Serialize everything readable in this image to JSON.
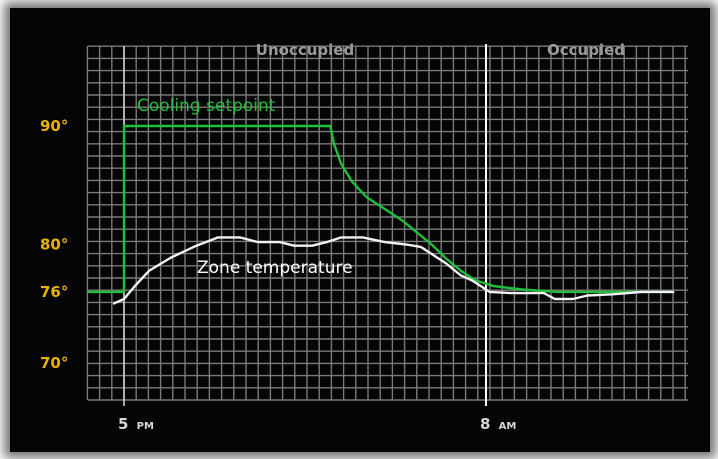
{
  "chart_data": {
    "type": "line",
    "title": "",
    "xlabel": "",
    "ylabel": "",
    "ylim": [
      66,
      98
    ],
    "xlim": [
      -0.2,
      15.2
    ],
    "grid": true,
    "y_ticks": [
      {
        "value": 90,
        "label": "90°"
      },
      {
        "value": 80,
        "label": "80°"
      },
      {
        "value": 76,
        "label": "76°"
      },
      {
        "value": 70,
        "label": "70°"
      }
    ],
    "x_ticks": [
      {
        "value": 0,
        "label": "5",
        "suffix": "PM"
      },
      {
        "value": 10,
        "label": "8",
        "suffix": "AM"
      }
    ],
    "regions": [
      {
        "name": "Unoccupied",
        "from": -0.2,
        "to": 10
      },
      {
        "name": "Occupied",
        "from": 10,
        "to": 15.2
      }
    ],
    "series": [
      {
        "name": "Cooling setpoint",
        "color": "#1fbf3a",
        "points": [
          [
            -1,
            76
          ],
          [
            0,
            76
          ],
          [
            0,
            90
          ],
          [
            5.7,
            90
          ],
          [
            5.8,
            88.5
          ],
          [
            6.0,
            86.8
          ],
          [
            6.3,
            85.3
          ],
          [
            6.7,
            84.0
          ],
          [
            7.2,
            83.0
          ],
          [
            7.7,
            82.0
          ],
          [
            8.1,
            81.0
          ],
          [
            8.5,
            80.0
          ],
          [
            8.9,
            78.8
          ],
          [
            9.3,
            77.8
          ],
          [
            9.7,
            77.0
          ],
          [
            10.2,
            76.5
          ],
          [
            11.0,
            76.2
          ],
          [
            12.0,
            76.0
          ],
          [
            13.5,
            76.0
          ],
          [
            15.2,
            76.0
          ]
        ]
      },
      {
        "name": "Zone temperature",
        "color": "#f2f2f2",
        "points": [
          [
            -0.3,
            75.0
          ],
          [
            0.0,
            75.4
          ],
          [
            0.3,
            76.5
          ],
          [
            0.7,
            77.8
          ],
          [
            1.3,
            78.9
          ],
          [
            2.0,
            79.9
          ],
          [
            2.6,
            80.6
          ],
          [
            3.2,
            80.6
          ],
          [
            3.7,
            80.2
          ],
          [
            4.3,
            80.2
          ],
          [
            4.7,
            79.9
          ],
          [
            5.2,
            79.9
          ],
          [
            5.6,
            80.2
          ],
          [
            6.0,
            80.6
          ],
          [
            6.6,
            80.6
          ],
          [
            7.2,
            80.2
          ],
          [
            7.8,
            80.0
          ],
          [
            8.2,
            79.8
          ],
          [
            8.5,
            79.2
          ],
          [
            8.9,
            78.4
          ],
          [
            9.3,
            77.4
          ],
          [
            9.6,
            77.0
          ],
          [
            9.8,
            76.6
          ],
          [
            10.1,
            76.0
          ],
          [
            10.7,
            75.9
          ],
          [
            11.6,
            75.9
          ],
          [
            11.9,
            75.4
          ],
          [
            12.4,
            75.4
          ],
          [
            12.8,
            75.7
          ],
          [
            13.5,
            75.8
          ],
          [
            14.3,
            76.0
          ],
          [
            15.2,
            76.0
          ]
        ]
      }
    ]
  }
}
